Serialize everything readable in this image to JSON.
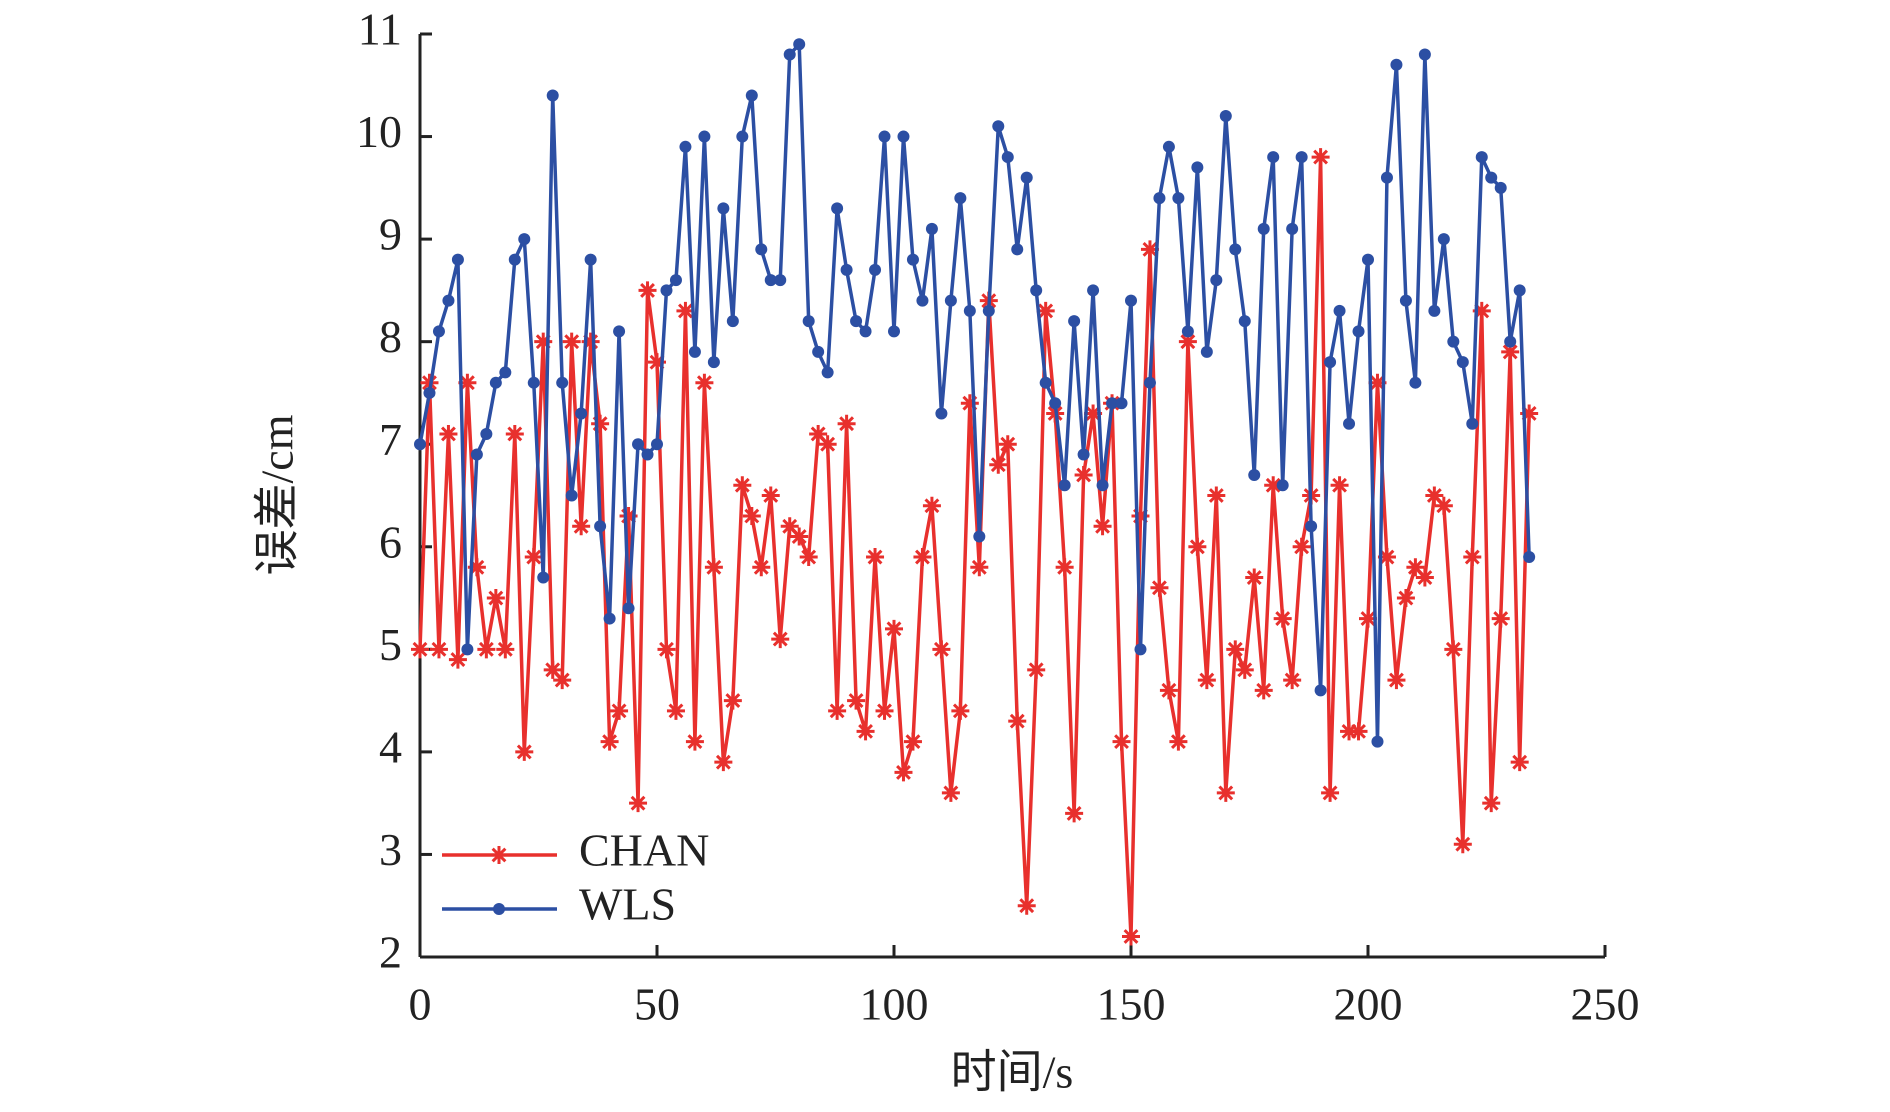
{
  "chart_data": {
    "type": "line",
    "xlabel": "时间/s",
    "ylabel": "误差/cm",
    "x": [
      0,
      2,
      4,
      6,
      8,
      10,
      12,
      14,
      16,
      18,
      20,
      22,
      24,
      26,
      28,
      30,
      32,
      34,
      36,
      38,
      40,
      42,
      44,
      46,
      48,
      50,
      52,
      54,
      56,
      58,
      60,
      62,
      64,
      66,
      68,
      70,
      72,
      74,
      76,
      78,
      80,
      82,
      84,
      86,
      88,
      90,
      92,
      94,
      96,
      98,
      100,
      102,
      104,
      106,
      108,
      110,
      112,
      114,
      116,
      118,
      120,
      122,
      124,
      126,
      128,
      130,
      132,
      134,
      136,
      138,
      140,
      142,
      144,
      146,
      148,
      150,
      152,
      154,
      156,
      158,
      160,
      162,
      164,
      166,
      168,
      170,
      172,
      174,
      176,
      178,
      180,
      182,
      184,
      186,
      188,
      190,
      192,
      194,
      196,
      198,
      200,
      202,
      204,
      206,
      208,
      210,
      212,
      214,
      216,
      218,
      220,
      222,
      224,
      226,
      228,
      230,
      232,
      234
    ],
    "series": [
      {
        "name": "CHAN",
        "color": "#e8302d",
        "marker": "asterisk",
        "values": [
          5.0,
          7.6,
          5.0,
          7.1,
          4.9,
          7.6,
          5.8,
          5.0,
          5.5,
          5.0,
          7.1,
          4.0,
          5.9,
          8.0,
          4.8,
          4.7,
          8.0,
          6.2,
          8.0,
          7.2,
          4.1,
          4.4,
          6.3,
          3.5,
          8.5,
          7.8,
          5.0,
          4.4,
          8.3,
          4.1,
          7.6,
          5.8,
          3.9,
          4.5,
          6.6,
          6.3,
          5.8,
          6.5,
          5.1,
          6.2,
          6.1,
          5.9,
          7.1,
          7.0,
          4.4,
          7.2,
          4.5,
          4.2,
          5.9,
          4.4,
          5.2,
          3.8,
          4.1,
          5.9,
          6.4,
          5.0,
          3.6,
          4.4,
          7.4,
          5.8,
          8.4,
          6.8,
          7.0,
          4.3,
          2.5,
          4.8,
          8.3,
          7.3,
          5.8,
          3.4,
          6.7,
          7.3,
          6.2,
          7.4,
          4.1,
          2.2,
          6.3,
          8.9,
          5.6,
          4.6,
          4.1,
          8.0,
          6.0,
          4.7,
          6.5,
          3.6,
          5.0,
          4.8,
          5.7,
          4.6,
          6.6,
          5.3,
          4.7,
          6.0,
          6.5,
          9.8,
          3.6,
          6.6,
          4.2,
          4.2,
          5.3,
          7.6,
          5.9,
          4.7,
          5.5,
          5.8,
          5.7,
          6.5,
          6.4,
          5.0,
          3.1,
          5.9,
          8.3,
          3.5,
          5.3,
          7.9,
          3.9,
          7.3
        ]
      },
      {
        "name": "WLS",
        "color": "#2c4fa3",
        "marker": "circle",
        "values": [
          7.0,
          7.5,
          8.1,
          8.4,
          8.8,
          5.0,
          6.9,
          7.1,
          7.6,
          7.7,
          8.8,
          9.0,
          7.6,
          5.7,
          10.4,
          7.6,
          6.5,
          7.3,
          8.8,
          6.2,
          5.3,
          8.1,
          5.4,
          7.0,
          6.9,
          7.0,
          8.5,
          8.6,
          9.9,
          7.9,
          10.0,
          7.8,
          9.3,
          8.2,
          10.0,
          10.4,
          8.9,
          8.6,
          8.6,
          10.8,
          10.9,
          8.2,
          7.9,
          7.7,
          9.3,
          8.7,
          8.2,
          8.1,
          8.7,
          10.0,
          8.1,
          10.0,
          8.8,
          8.4,
          9.1,
          7.3,
          8.4,
          9.4,
          8.3,
          6.1,
          8.3,
          10.1,
          9.8,
          8.9,
          9.6,
          8.5,
          7.6,
          7.4,
          6.6,
          8.2,
          6.9,
          8.5,
          6.6,
          7.4,
          7.4,
          8.4,
          5.0,
          7.6,
          9.4,
          9.9,
          9.4,
          8.1,
          9.7,
          7.9,
          8.6,
          10.2,
          8.9,
          8.2,
          6.7,
          9.1,
          9.8,
          6.6,
          9.1,
          9.8,
          6.2,
          4.6,
          7.8,
          8.3,
          7.2,
          8.1,
          8.8,
          4.1,
          9.6,
          10.7,
          8.4,
          7.6,
          10.8,
          8.3,
          9.0,
          8.0,
          7.8,
          7.2,
          9.8,
          9.6,
          9.5,
          8.0,
          8.5,
          5.9
        ]
      }
    ],
    "xlim": [
      0,
      250
    ],
    "xticks": [
      0,
      50,
      100,
      150,
      200,
      250
    ],
    "ylim": [
      2,
      11
    ],
    "yticks": [
      2,
      3,
      4,
      5,
      6,
      7,
      8,
      9,
      10,
      11
    ],
    "grid": false,
    "legend": "lower left"
  }
}
